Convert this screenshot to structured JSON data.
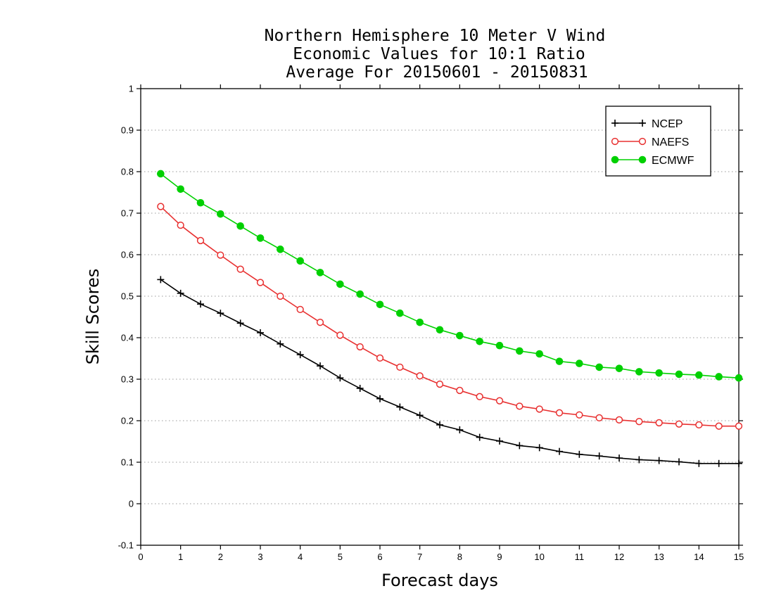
{
  "chart_data": {
    "type": "line",
    "title": [
      "Northern Hemisphere 10 Meter V Wind",
      "Economic Values for 10:1 Ratio",
      "Average For 20150601 - 20150831"
    ],
    "xlabel": "Forecast days",
    "ylabel": "Skill Scores",
    "xlim": [
      0,
      15
    ],
    "ylim": [
      -0.1,
      1
    ],
    "x_ticks": [
      0,
      1,
      2,
      3,
      4,
      5,
      6,
      7,
      8,
      9,
      10,
      11,
      12,
      13,
      14,
      15
    ],
    "x_tick_labels": [
      "0",
      "1",
      "2",
      "3",
      "4",
      "5",
      "6",
      "7",
      "8",
      "9",
      "10",
      "11",
      "12",
      "13",
      "14",
      "15"
    ],
    "y_ticks": [
      -0.1,
      0,
      0.1,
      0.2,
      0.3,
      0.4,
      0.5,
      0.6,
      0.7,
      0.8,
      0.9,
      1
    ],
    "y_tick_labels": [
      "-0.1",
      "0",
      "0.1",
      "0.2",
      "0.3",
      "0.4",
      "0.5",
      "0.6",
      "0.7",
      "0.8",
      "0.9",
      "1"
    ],
    "grid": "horizontal dotted",
    "legend_position": "top-right",
    "x": [
      0.5,
      1,
      1.5,
      2,
      2.5,
      3,
      3.5,
      4,
      4.5,
      5,
      5.5,
      6,
      6.5,
      7,
      7.5,
      8,
      8.5,
      9,
      9.5,
      10,
      10.5,
      11,
      11.5,
      12,
      12.5,
      13,
      13.5,
      14,
      14.5,
      15
    ],
    "series": [
      {
        "name": "NCEP",
        "color": "#000000",
        "marker": "plus",
        "values": [
          0.54,
          0.507,
          0.481,
          0.459,
          0.435,
          0.412,
          0.385,
          0.359,
          0.332,
          0.303,
          0.278,
          0.253,
          0.233,
          0.213,
          0.19,
          0.178,
          0.16,
          0.151,
          0.14,
          0.135,
          0.126,
          0.119,
          0.115,
          0.11,
          0.106,
          0.104,
          0.101,
          0.097,
          0.097,
          0.097
        ]
      },
      {
        "name": "NAEFS",
        "color": "#e83030",
        "marker": "open-circle",
        "values": [
          0.716,
          0.671,
          0.634,
          0.599,
          0.565,
          0.533,
          0.5,
          0.468,
          0.437,
          0.406,
          0.378,
          0.351,
          0.329,
          0.308,
          0.288,
          0.273,
          0.258,
          0.248,
          0.235,
          0.228,
          0.219,
          0.214,
          0.207,
          0.202,
          0.198,
          0.195,
          0.192,
          0.19,
          0.187,
          0.187
        ]
      },
      {
        "name": "ECMWF",
        "color": "#00d000",
        "marker": "filled-circle",
        "values": [
          0.795,
          0.758,
          0.725,
          0.698,
          0.669,
          0.64,
          0.613,
          0.585,
          0.557,
          0.529,
          0.505,
          0.48,
          0.459,
          0.437,
          0.419,
          0.405,
          0.391,
          0.381,
          0.368,
          0.361,
          0.343,
          0.338,
          0.329,
          0.326,
          0.318,
          0.315,
          0.312,
          0.31,
          0.306,
          0.303
        ]
      }
    ]
  }
}
